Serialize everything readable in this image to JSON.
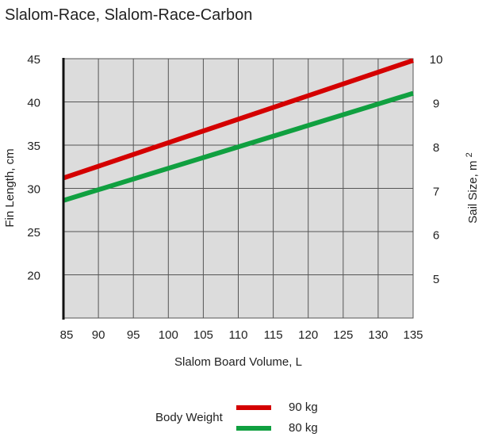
{
  "chart_data": {
    "type": "line",
    "title": "Slalom-Race, Slalom-Race-Carbon",
    "xlabel": "Slalom Board Volume, L",
    "ylabel": "Fin Length, cm",
    "ylabel_right": "Sail Size, m",
    "ylabel_right_superscript": "2",
    "xlim": [
      85,
      135
    ],
    "ylim": [
      15,
      45
    ],
    "ylim_right": [
      4.1,
      10
    ],
    "x_ticks": [
      "85",
      "90",
      "95",
      "100",
      "105",
      "110",
      "115",
      "120",
      "125",
      "130",
      "135"
    ],
    "y_ticks": [
      "20",
      "25",
      "30",
      "35",
      "40",
      "45"
    ],
    "y_ticks_right": [
      "5",
      "6",
      "7",
      "8",
      "9",
      "10"
    ],
    "grid": true,
    "legend_title": "Body Weight",
    "legend_position": "bottom",
    "series": [
      {
        "name": "90 kg",
        "color": "#d40000",
        "x": [
          85,
          135
        ],
        "y": [
          31.2,
          44.8
        ]
      },
      {
        "name": "80 kg",
        "color": "#10a040",
        "x": [
          85,
          135
        ],
        "y": [
          28.6,
          41.0
        ]
      }
    ],
    "colors": {
      "plot_background": "#dcdcdc",
      "grid": "#555555",
      "axis": "#111111"
    }
  }
}
